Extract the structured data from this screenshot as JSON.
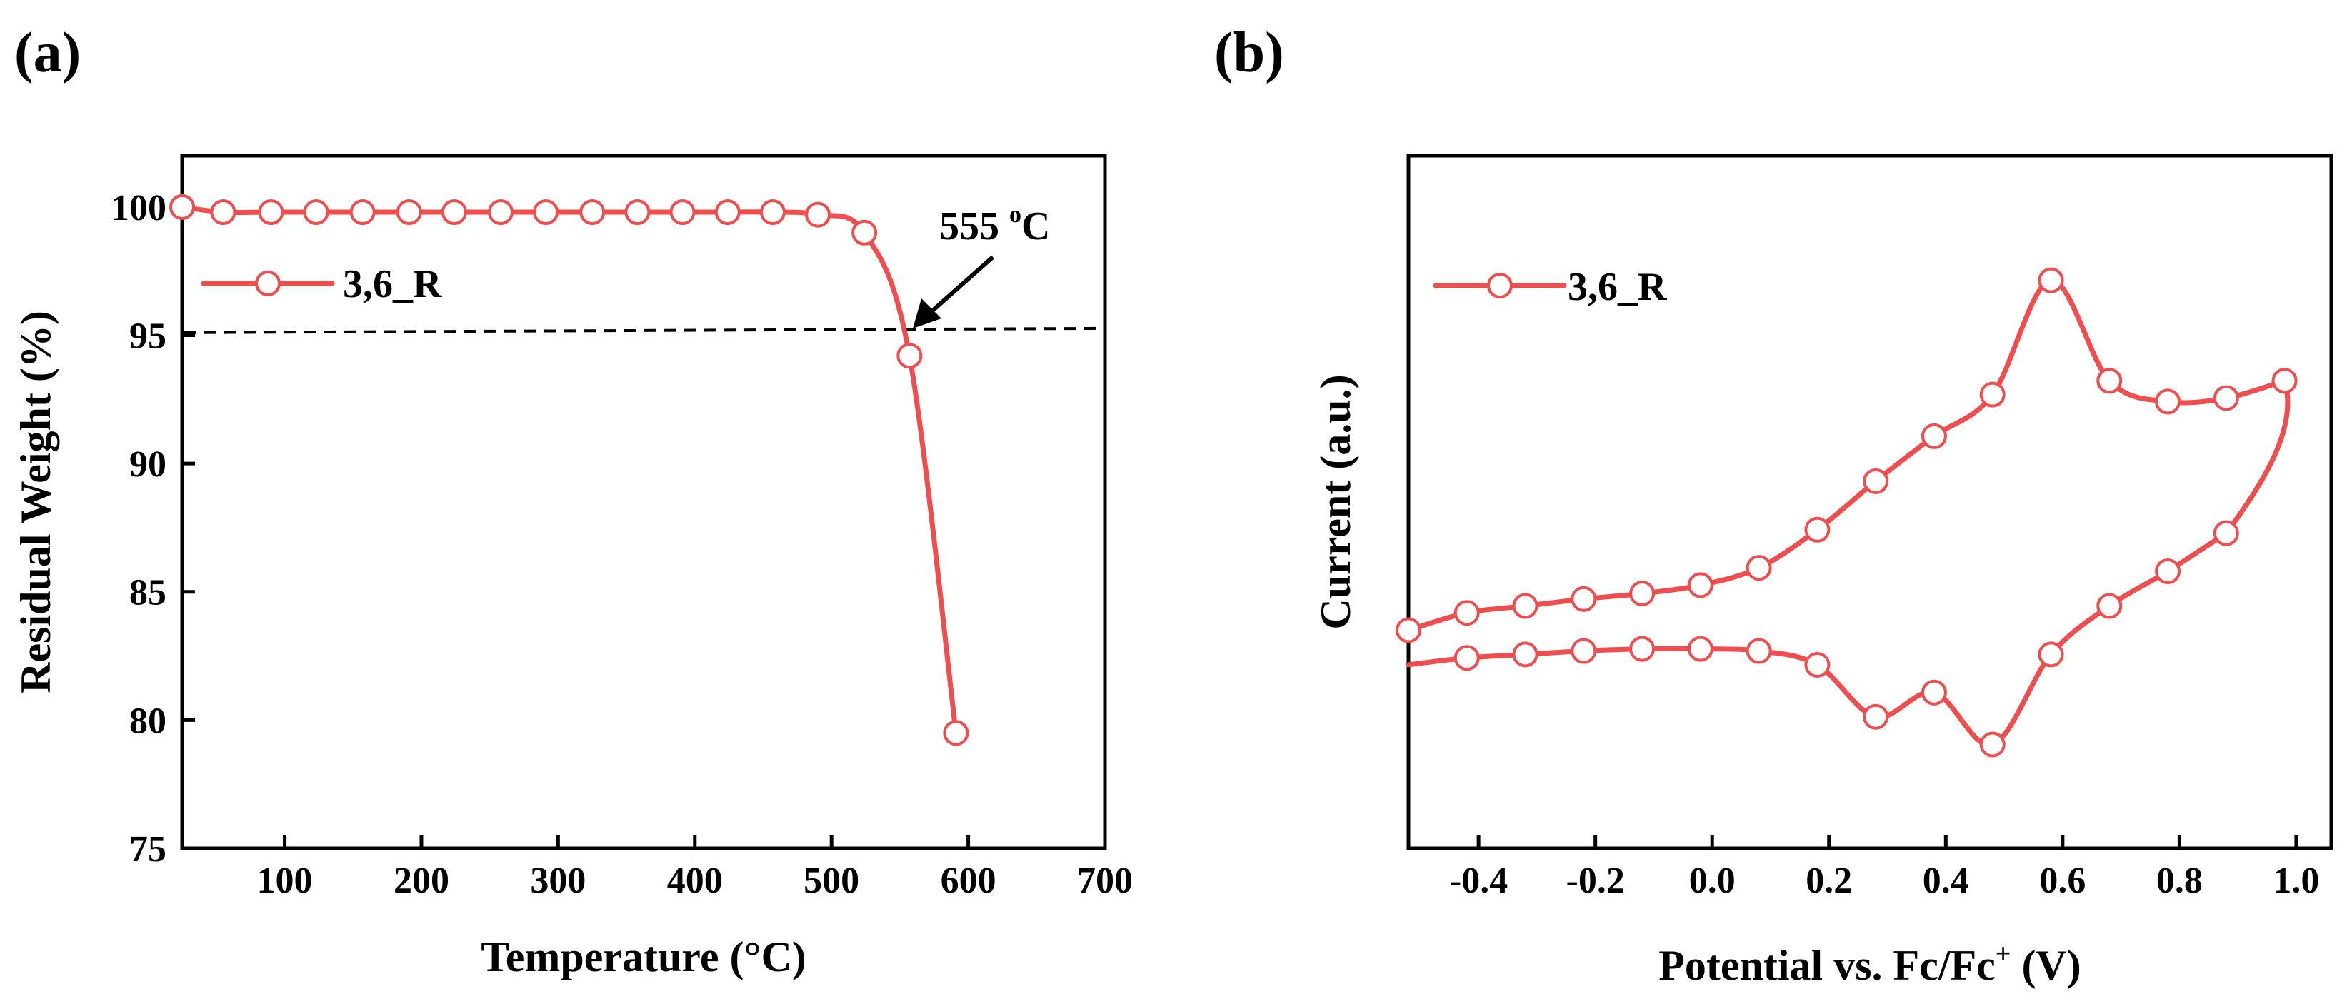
{
  "colors": {
    "series": "#f04e4e",
    "axis": "#000000",
    "text": "#000000"
  },
  "chart_data": [
    {
      "panel_label": "(a)",
      "type": "line",
      "title": "",
      "xlabel": "Temperature (°C)",
      "ylabel": "Residual Weight (%)",
      "xlim": [
        25,
        700
      ],
      "ylim": [
        75,
        102
      ],
      "xticks": [
        100,
        200,
        300,
        400,
        500,
        600,
        700
      ],
      "xtick_labels": [
        "100",
        "200",
        "300",
        "400",
        "500",
        "600",
        "700"
      ],
      "yticks": [
        75,
        80,
        85,
        90,
        95,
        100
      ],
      "ytick_labels": [
        "75",
        "80",
        "85",
        "90",
        "95",
        "100"
      ],
      "legend": {
        "label": "3,6_R",
        "position": "top-left"
      },
      "series": [
        {
          "name": "3,6_R",
          "x": [
            25,
            55,
            90,
            123,
            157,
            191,
            224,
            258,
            291,
            325,
            358,
            391,
            424,
            457,
            490,
            524,
            557,
            591
          ],
          "y": [
            100.0,
            99.8,
            99.8,
            99.8,
            99.8,
            99.8,
            99.8,
            99.8,
            99.8,
            99.8,
            99.8,
            99.8,
            99.8,
            99.8,
            99.7,
            99.0,
            94.2,
            79.5
          ]
        }
      ],
      "reference_line": {
        "y": 95.1,
        "style": "dashed"
      },
      "annotation": {
        "text": "555 °C",
        "degree_sign": "o",
        "value_text": "555 ",
        "unit_text": "C",
        "target": [
          556,
          95.2
        ]
      }
    },
    {
      "panel_label": "(b)",
      "type": "line",
      "title": "",
      "xlabel": "Potential vs. Fc/Fc+ (V)",
      "xlabel_parts": {
        "before": "Potential vs. Fc/Fc",
        "sup": "+",
        "after": " (V)"
      },
      "ylabel": "Current (a.u.)",
      "xlim": [
        -0.52,
        1.06
      ],
      "ylim": [
        0,
        10
      ],
      "xticks": [
        -0.4,
        -0.2,
        0.0,
        0.2,
        0.4,
        0.6,
        0.8,
        1.0
      ],
      "xtick_labels": [
        "-0.4",
        "-0.2",
        "0.0",
        "0.2",
        "0.4",
        "0.6",
        "0.8",
        "1.0"
      ],
      "yticks": [],
      "legend": {
        "label": "3,6_R",
        "position": "top-left"
      },
      "series": [
        {
          "name": "3,6_R upper",
          "x": [
            -0.52,
            -0.42,
            -0.32,
            -0.22,
            -0.12,
            -0.02,
            0.08,
            0.18,
            0.28,
            0.38,
            0.48,
            0.58,
            0.68,
            0.78,
            0.88,
            0.98
          ],
          "y": [
            3.15,
            3.4,
            3.5,
            3.6,
            3.68,
            3.8,
            4.05,
            4.6,
            5.3,
            5.95,
            6.55,
            8.2,
            6.75,
            6.45,
            6.5,
            6.75
          ]
        },
        {
          "name": "3,6_R lower",
          "x": [
            -0.52,
            -0.42,
            -0.32,
            -0.22,
            -0.12,
            -0.02,
            0.08,
            0.18,
            0.28,
            0.38,
            0.48,
            0.58,
            0.68,
            0.78,
            0.88
          ],
          "y": [
            2.65,
            2.75,
            2.8,
            2.85,
            2.88,
            2.88,
            2.85,
            2.65,
            1.9,
            2.25,
            1.5,
            2.8,
            3.5,
            4.0,
            4.55
          ]
        }
      ]
    }
  ]
}
